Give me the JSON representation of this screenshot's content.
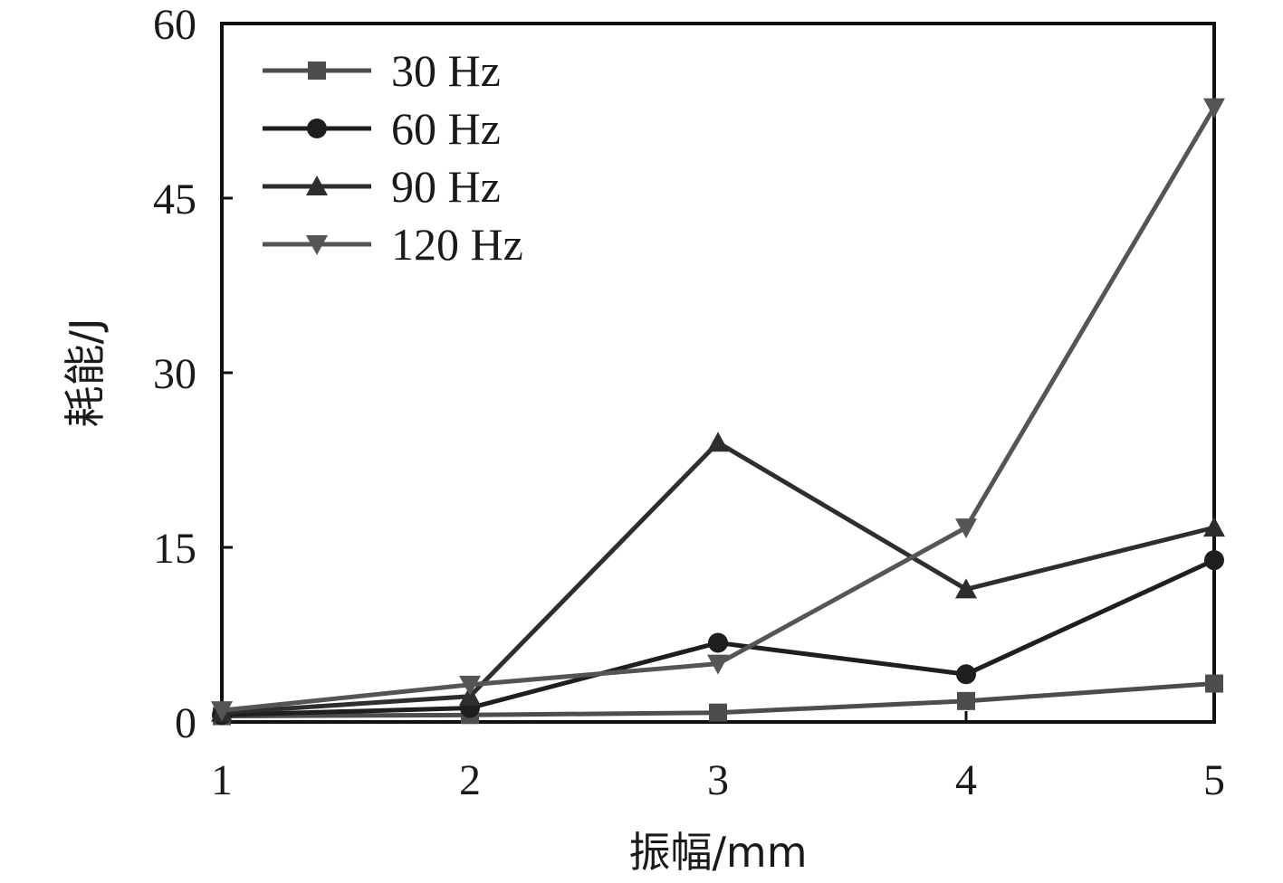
{
  "chart_data": {
    "type": "line",
    "title": "",
    "xlabel": "振幅/mm",
    "ylabel": "耗能/J",
    "x": [
      1,
      2,
      3,
      4,
      5
    ],
    "xlim": [
      1,
      5
    ],
    "ylim": [
      0,
      60
    ],
    "xticks": [
      "1",
      "2",
      "3",
      "4",
      "5"
    ],
    "yticks": [
      "0",
      "15",
      "30",
      "45",
      "60"
    ],
    "grid": false,
    "legend": "top-left",
    "series": [
      {
        "name": "30 Hz",
        "marker": "square",
        "color": "#4d4d4d",
        "values": [
          0.5,
          0.6,
          0.8,
          1.8,
          3.3
        ]
      },
      {
        "name": "60 Hz",
        "marker": "circle",
        "color": "#1f1f1f",
        "values": [
          0.6,
          1.2,
          6.8,
          4.1,
          13.9
        ]
      },
      {
        "name": "90 Hz",
        "marker": "triangle-up",
        "color": "#2e2e2e",
        "values": [
          0.8,
          2.2,
          24.0,
          11.4,
          16.7
        ]
      },
      {
        "name": "120 Hz",
        "marker": "triangle-down",
        "color": "#555555",
        "values": [
          1.0,
          3.2,
          5.0,
          16.7,
          52.8
        ]
      }
    ]
  }
}
